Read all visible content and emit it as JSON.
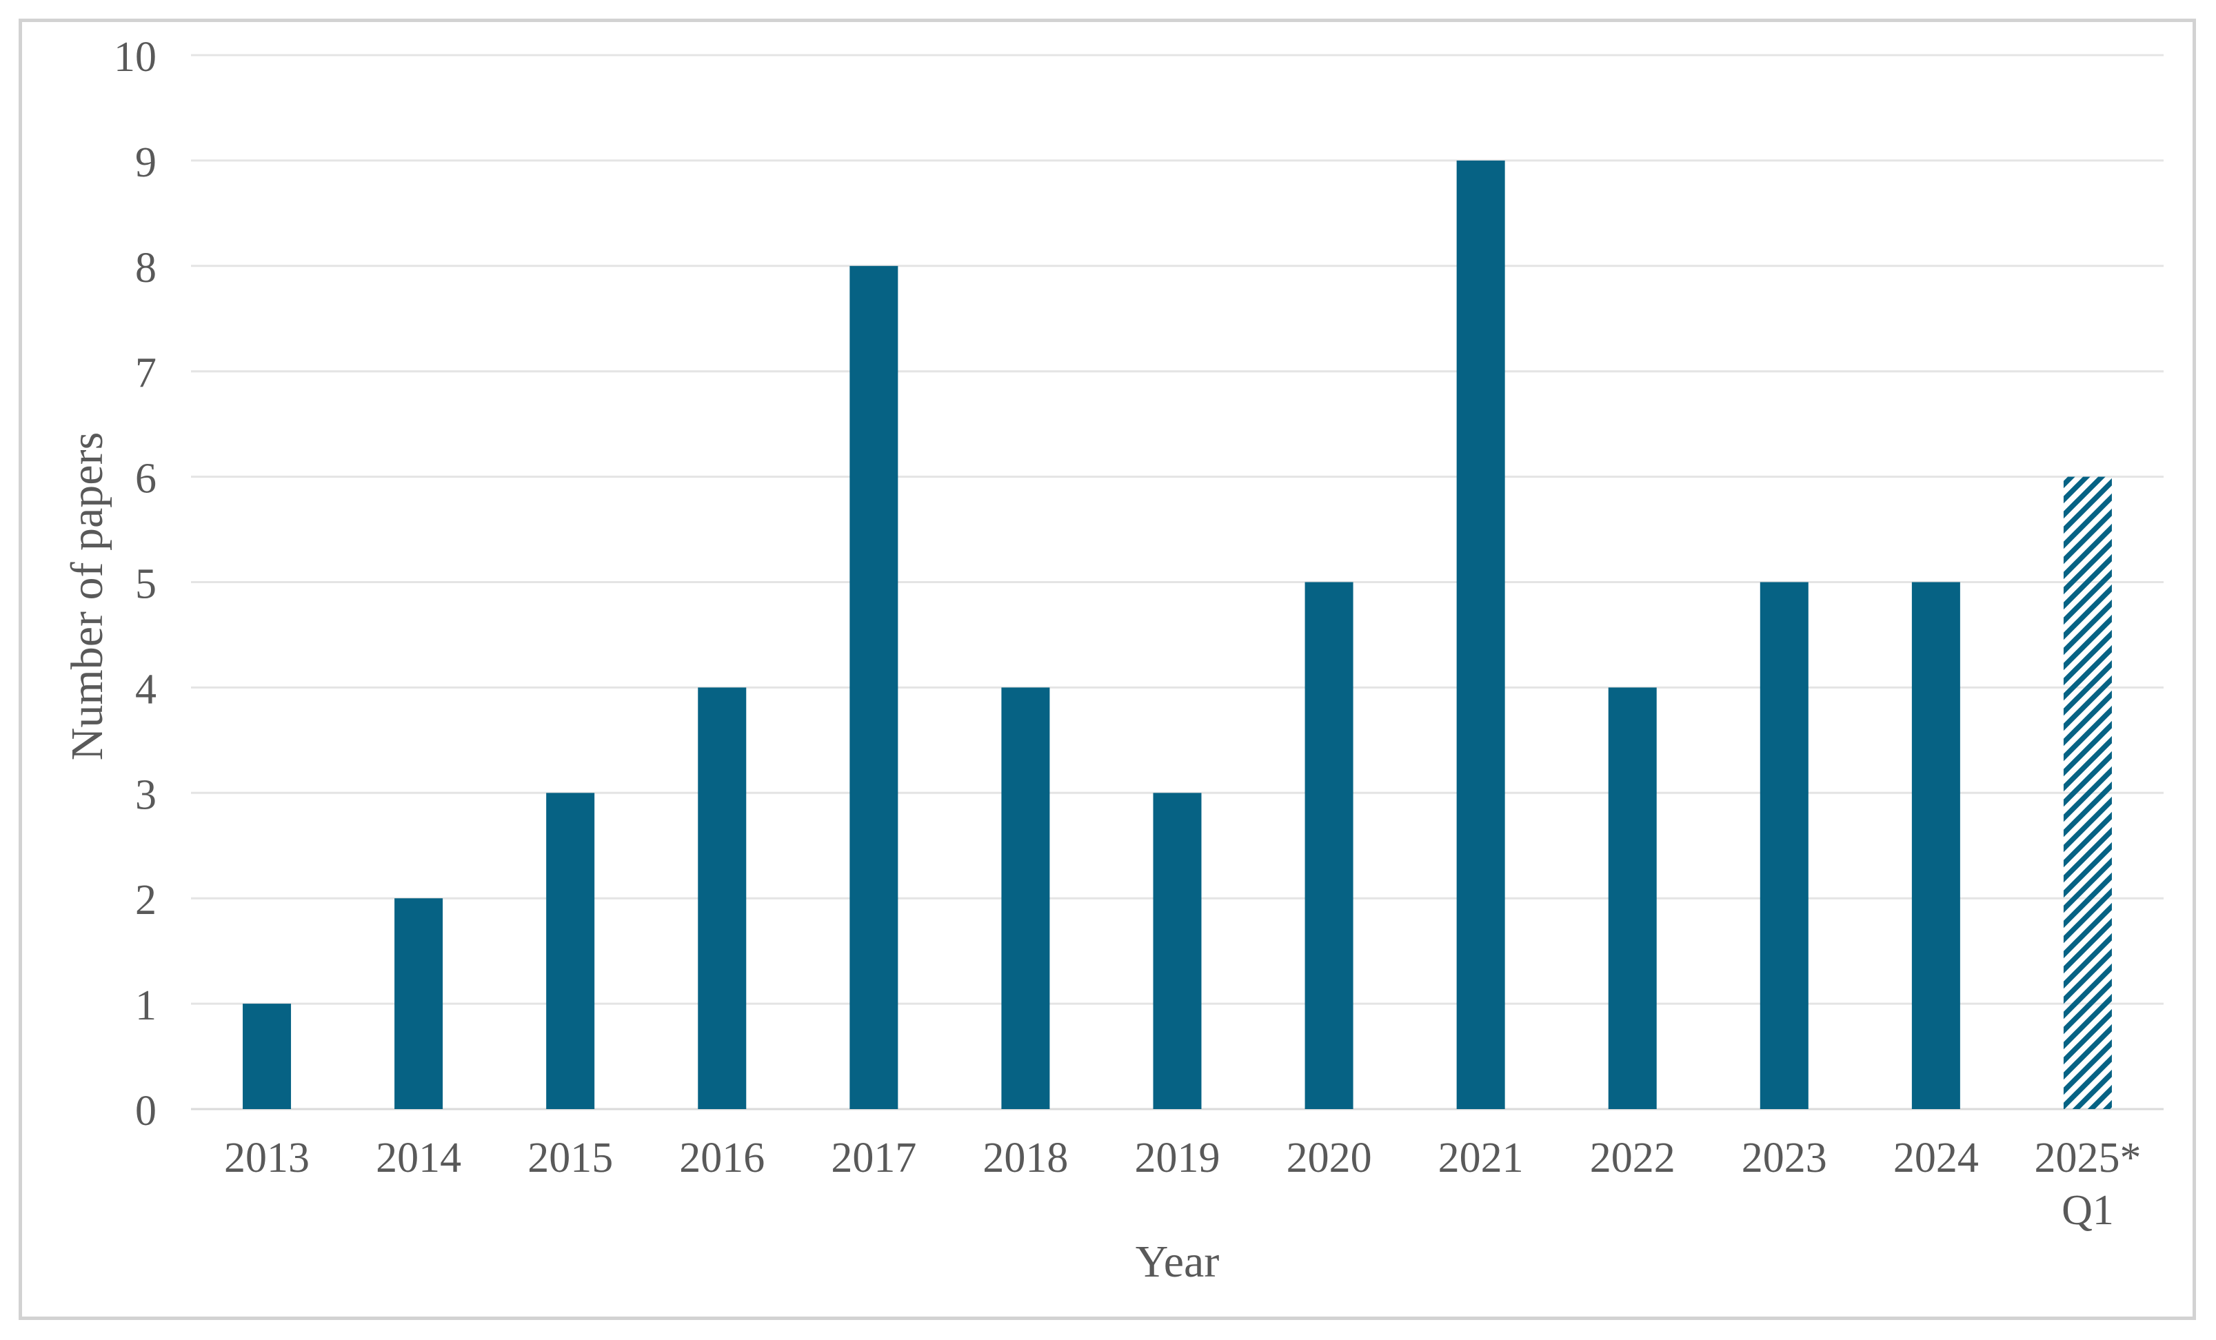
{
  "figure": {
    "background": "#ffffff",
    "border_color": "#d2d2d2"
  },
  "chart_data": {
    "type": "bar",
    "title": "",
    "xlabel": "Year",
    "ylabel": "Number of papers",
    "categories": [
      "2013",
      "2014",
      "2015",
      "2016",
      "2017",
      "2018",
      "2019",
      "2020",
      "2021",
      "2022",
      "2023",
      "2024",
      "2025*\nQ1"
    ],
    "values": [
      1,
      2,
      3,
      4,
      8,
      4,
      3,
      5,
      9,
      4,
      5,
      5,
      6
    ],
    "yticks": [
      0,
      1,
      2,
      3,
      4,
      5,
      6,
      7,
      8,
      9,
      10
    ],
    "ylim": [
      0,
      10
    ],
    "grid": "horizontal",
    "legend": "none",
    "bar_color": "#066284",
    "hatched_bar_indices": [
      12
    ],
    "hatch_style": "diagonal-stripes-bottomleft-to-topright",
    "gridline_color": "#e4e4e4",
    "axis_line_color": "#dadada",
    "label_color": "#595959"
  }
}
